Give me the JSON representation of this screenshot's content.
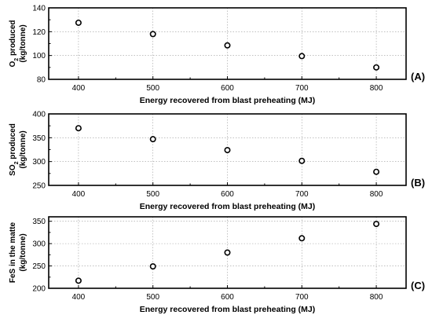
{
  "chart_data": [
    {
      "type": "scatter",
      "panel_label": "(A)",
      "x": [
        400,
        500,
        600,
        700,
        800
      ],
      "y": [
        127.5,
        118,
        108.5,
        99.5,
        90
      ],
      "xlim": [
        360,
        840
      ],
      "ylim": [
        80,
        140
      ],
      "xticks": [
        400,
        500,
        600,
        700,
        800
      ],
      "yticks": [
        80,
        100,
        120,
        140
      ],
      "ylabel_pre": "O",
      "ylabel_sub": "2",
      "ylabel_post": " produced",
      "ylabel_unit": "(kg/tonne)",
      "xlabel": "Energy recovered from blast preheating (MJ)",
      "grid": true
    },
    {
      "type": "scatter",
      "panel_label": "(B)",
      "x": [
        400,
        500,
        600,
        700,
        800
      ],
      "y": [
        370,
        347,
        324,
        301.5,
        278.5
      ],
      "xlim": [
        360,
        840
      ],
      "ylim": [
        250,
        400
      ],
      "xticks": [
        400,
        500,
        600,
        700,
        800
      ],
      "yticks": [
        250,
        300,
        350,
        400
      ],
      "ylabel_pre": "SO",
      "ylabel_sub": "2",
      "ylabel_post": " produced",
      "ylabel_unit": "(kg/tonne)",
      "xlabel": "Energy recovered from blast preheating (MJ)",
      "grid": true
    },
    {
      "type": "scatter",
      "panel_label": "(C)",
      "x": [
        400,
        500,
        600,
        700,
        800
      ],
      "y": [
        217,
        249,
        280,
        312,
        344
      ],
      "xlim": [
        360,
        840
      ],
      "ylim": [
        200,
        360
      ],
      "xticks": [
        400,
        500,
        600,
        700,
        800
      ],
      "yticks": [
        200,
        250,
        300,
        350
      ],
      "ylabel_pre": "FeS in the matte",
      "ylabel_sub": "",
      "ylabel_post": "",
      "ylabel_unit": "(kg/tonne)",
      "xlabel": "Energy recovered from blast preheating (MJ)",
      "grid": true
    }
  ]
}
